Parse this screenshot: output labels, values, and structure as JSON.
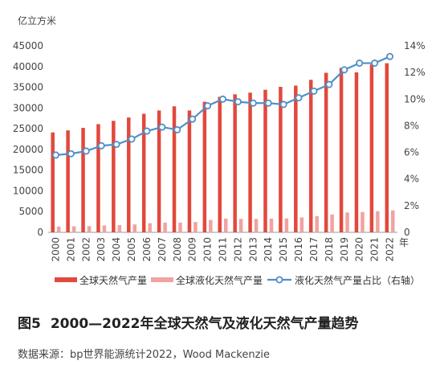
{
  "figure": {
    "number": "图5",
    "title": "2000—2022年全球天然气及液化天然气产量趋势",
    "source": "数据来源：bp世界能源统计2022，Wood Mackenzie"
  },
  "chart_data": {
    "type": "bar",
    "left_axis_unit": "亿立方米",
    "x_unit": "年",
    "categories": [
      "2000",
      "2001",
      "2002",
      "2003",
      "2004",
      "2005",
      "2006",
      "2007",
      "2008",
      "2009",
      "2010",
      "2011",
      "2012",
      "2013",
      "2014",
      "2015",
      "2016",
      "2017",
      "2018",
      "2019",
      "2020",
      "2021",
      "2022"
    ],
    "y_left_range": [
      0,
      45000
    ],
    "y_left_ticks": [
      0,
      5000,
      10000,
      15000,
      20000,
      25000,
      30000,
      35000,
      40000,
      45000
    ],
    "y_right_range": [
      0,
      14
    ],
    "y_right_ticks": [
      "0",
      "2%",
      "4%",
      "6%",
      "8%",
      "10%",
      "12%",
      "14%"
    ],
    "grid": false,
    "legend_position": "bottom",
    "series": [
      {
        "name": "全球天然气产量",
        "type": "bar",
        "axis": "left",
        "color": "#e2483d",
        "values": [
          24100,
          24600,
          25200,
          26100,
          26900,
          27700,
          28600,
          29400,
          30400,
          29400,
          31500,
          32700,
          33300,
          33700,
          34400,
          35100,
          35400,
          36800,
          38500,
          39700,
          38600,
          40500,
          40800
        ]
      },
      {
        "name": "全球液化天然气产量",
        "type": "bar",
        "axis": "left",
        "color": "#f0a3a0",
        "values": [
          1400,
          1450,
          1500,
          1650,
          1750,
          1900,
          2200,
          2350,
          2350,
          2500,
          3000,
          3300,
          3250,
          3250,
          3300,
          3350,
          3600,
          3900,
          4300,
          4800,
          4900,
          5100,
          5300
        ]
      },
      {
        "name": "液化天然气产量占比（右轴）",
        "type": "line",
        "axis": "right",
        "color": "#4f8fc8",
        "values": [
          5.8,
          5.9,
          6.1,
          6.5,
          6.6,
          7.0,
          7.6,
          7.9,
          7.7,
          8.5,
          9.5,
          10.0,
          9.8,
          9.7,
          9.7,
          9.6,
          10.1,
          10.6,
          11.1,
          12.2,
          12.7,
          12.7,
          13.2
        ]
      }
    ]
  }
}
